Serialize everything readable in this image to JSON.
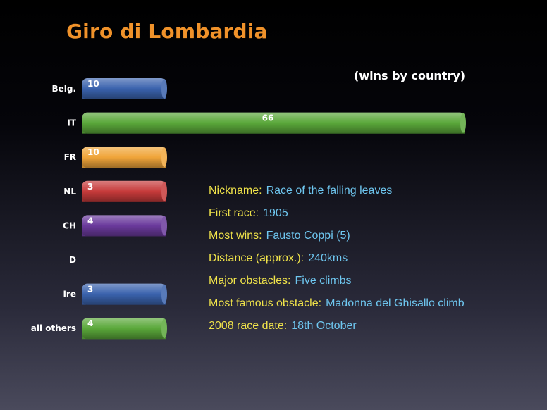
{
  "title": "Giro di Lombardia",
  "subtitle": "(wins by country)",
  "chart_data": {
    "type": "bar",
    "orientation": "horizontal",
    "title": "Giro di Lombardia",
    "subtitle": "(wins by country)",
    "categories": [
      "Belg.",
      "IT",
      "FR",
      "NL",
      "CH",
      "D",
      "Ire",
      "all others"
    ],
    "values": [
      10,
      66,
      10,
      3,
      4,
      0,
      3,
      4
    ],
    "value_labels": [
      "10",
      "66",
      "10",
      "3",
      "4",
      "",
      "3",
      "4"
    ],
    "colors": [
      "#3a62ad",
      "#5aa83a",
      "#f0a53a",
      "#c63a3a",
      "#6a3a9c",
      "#555555",
      "#3a62ad",
      "#5aa83a"
    ],
    "xlabel": "",
    "ylabel": "",
    "grid": false,
    "legend": "none"
  },
  "info": [
    {
      "key": "Nickname:",
      "value": "Race of the falling leaves"
    },
    {
      "key": "First race:",
      "value": "1905"
    },
    {
      "key": "Most wins:",
      "value": "Fausto Coppi (5)"
    },
    {
      "key": "Distance (approx.):",
      "value": "240kms"
    },
    {
      "key": "Major obstacles:",
      "value": "Five climbs"
    },
    {
      "key": "Most famous obstacle:",
      "value": "Madonna del Ghisallo climb"
    },
    {
      "key": "2008 race date:",
      "value": "18th October"
    }
  ]
}
